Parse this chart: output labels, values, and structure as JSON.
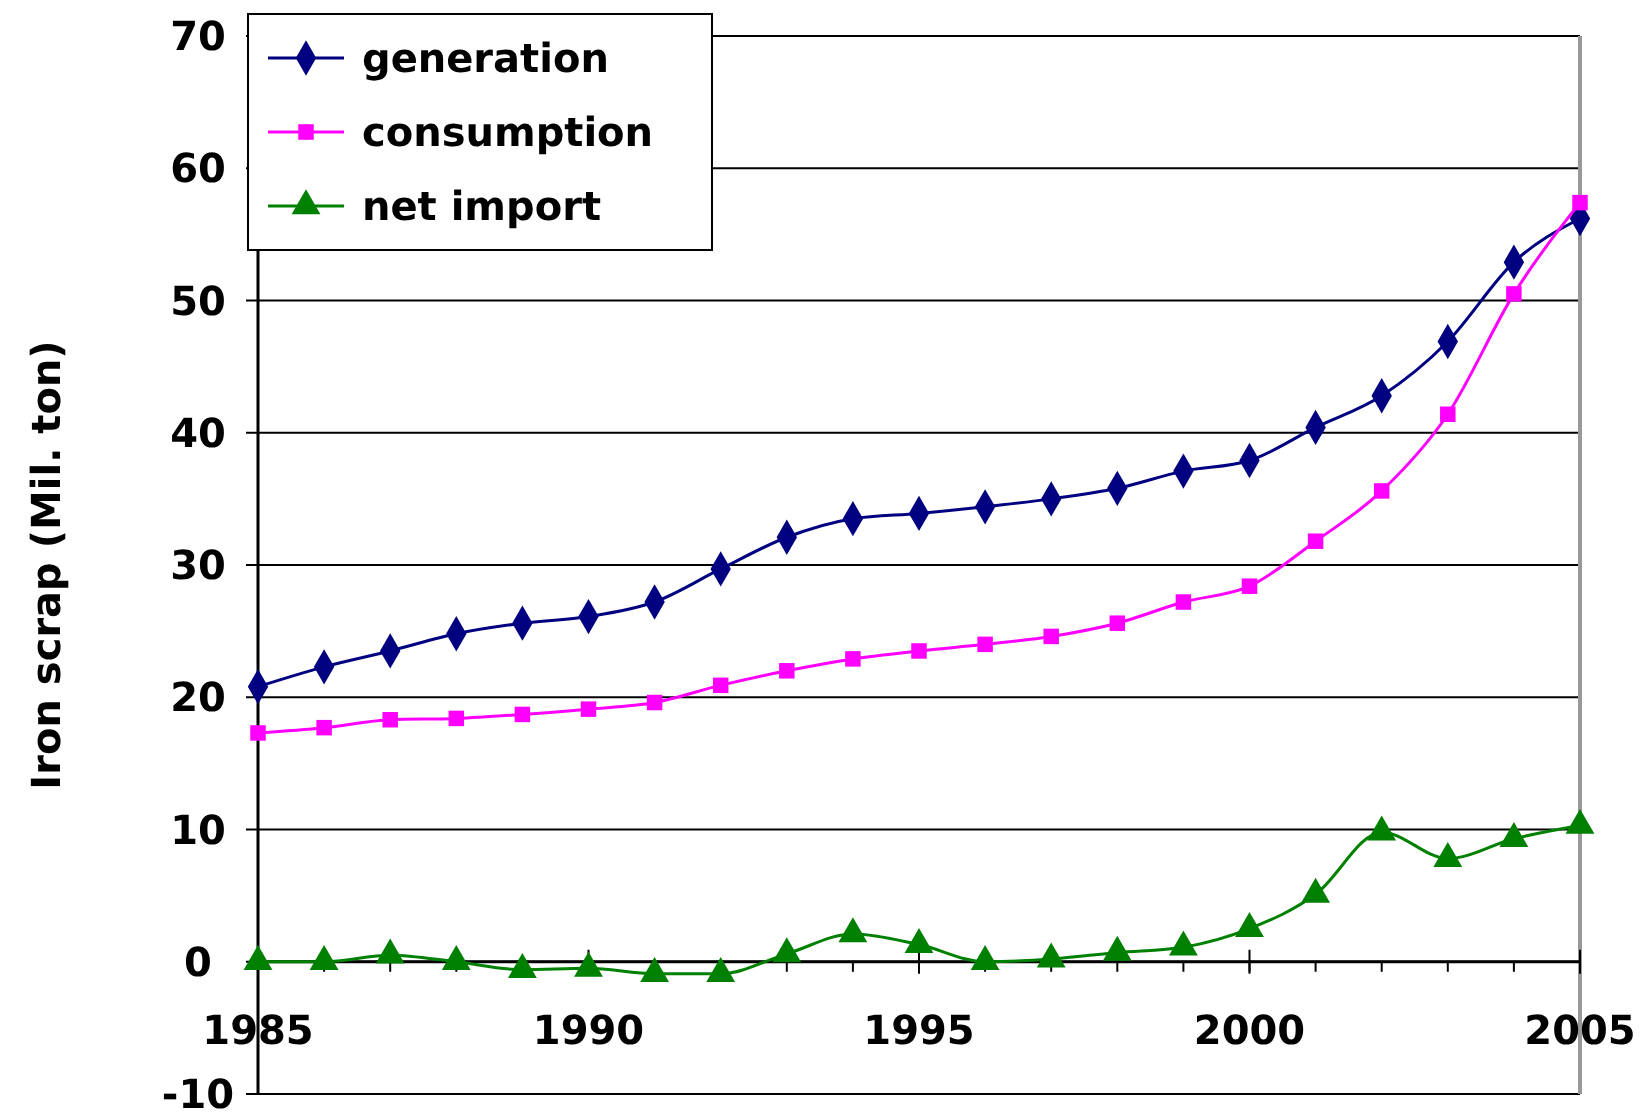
{
  "chart_data": {
    "type": "line",
    "ylabel": "Iron scrap (Mil. ton)",
    "x": [
      1985,
      1986,
      1987,
      1988,
      1989,
      1990,
      1991,
      1992,
      1993,
      1994,
      1995,
      1996,
      1997,
      1998,
      1999,
      2000,
      2001,
      2002,
      2003,
      2004,
      2005
    ],
    "series": [
      {
        "name": "generation",
        "color": "#000080",
        "marker": "diamond",
        "values": [
          20.8,
          22.3,
          23.5,
          24.8,
          25.6,
          26.1,
          27.2,
          29.7,
          32.1,
          33.5,
          33.9,
          34.4,
          35.0,
          35.8,
          37.1,
          37.9,
          40.4,
          42.8,
          46.9,
          52.9,
          56.2
        ]
      },
      {
        "name": "consumption",
        "color": "#ff00ff",
        "marker": "square",
        "values": [
          17.3,
          17.7,
          18.3,
          18.4,
          18.7,
          19.1,
          19.6,
          20.9,
          22.0,
          22.9,
          23.5,
          24.0,
          24.6,
          25.6,
          27.2,
          28.4,
          31.8,
          35.6,
          41.4,
          50.5,
          57.4
        ]
      },
      {
        "name": "net import",
        "color": "#008000",
        "marker": "triangle",
        "values": [
          0.0,
          0.0,
          0.5,
          0.0,
          -0.6,
          -0.5,
          -0.9,
          -0.9,
          0.6,
          2.1,
          1.3,
          0.0,
          0.2,
          0.7,
          1.1,
          2.5,
          5.1,
          9.8,
          7.8,
          9.3,
          10.3
        ]
      }
    ],
    "xlim": [
      1985,
      2005
    ],
    "xticks": [
      1985,
      1990,
      1995,
      2000,
      2005
    ],
    "ylim": [
      -10,
      70
    ],
    "yticks": [
      -10,
      0,
      10,
      20,
      30,
      40,
      50,
      60,
      70
    ],
    "grid": "y",
    "legend": "top left",
    "line_style": "solid"
  }
}
